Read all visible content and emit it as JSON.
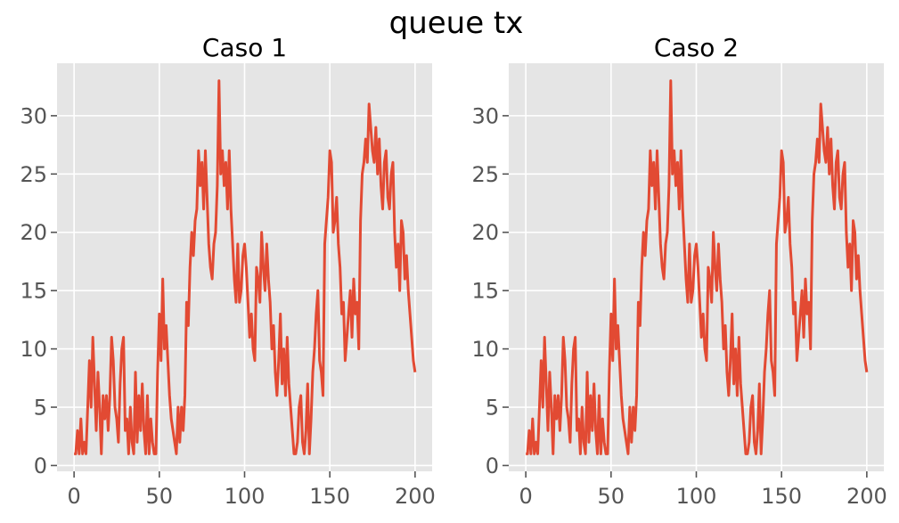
{
  "figure": {
    "title": "queue tx"
  },
  "chart_data": [
    {
      "type": "line",
      "title": "Caso 1",
      "xlabel": "",
      "ylabel": "",
      "xlim": [
        -10,
        210
      ],
      "ylim": [
        -0.5,
        34.5
      ],
      "xticks": [
        0,
        50,
        100,
        150,
        200
      ],
      "yticks": [
        0,
        5,
        10,
        15,
        20,
        25,
        30
      ],
      "grid": true,
      "legend": "none",
      "series": [
        {
          "color": "#E24A33",
          "x": [
            0,
            1,
            2,
            3,
            4,
            5,
            6,
            7,
            8,
            9,
            10,
            11,
            12,
            13,
            14,
            15,
            16,
            17,
            18,
            19,
            20,
            21,
            22,
            23,
            24,
            25,
            26,
            27,
            28,
            29,
            30,
            31,
            32,
            33,
            34,
            35,
            36,
            37,
            38,
            39,
            40,
            41,
            42,
            43,
            44,
            45,
            46,
            47,
            48,
            49,
            50,
            51,
            52,
            53,
            54,
            55,
            56,
            57,
            58,
            59,
            60,
            61,
            62,
            63,
            64,
            65,
            66,
            67,
            68,
            69,
            70,
            71,
            72,
            73,
            74,
            75,
            76,
            77,
            78,
            79,
            80,
            81,
            82,
            83,
            84,
            85,
            86,
            87,
            88,
            89,
            90,
            91,
            92,
            93,
            94,
            95,
            96,
            97,
            98,
            99,
            100,
            101,
            102,
            103,
            104,
            105,
            106,
            107,
            108,
            109,
            110,
            111,
            112,
            113,
            114,
            115,
            116,
            117,
            118,
            119,
            120,
            121,
            122,
            123,
            124,
            125,
            126,
            127,
            128,
            129,
            130,
            131,
            132,
            133,
            134,
            135,
            136,
            137,
            138,
            139,
            140,
            141,
            142,
            143,
            144,
            145,
            146,
            147,
            148,
            149,
            150,
            151,
            152,
            153,
            154,
            155,
            156,
            157,
            158,
            159,
            160,
            161,
            162,
            163,
            164,
            165,
            166,
            167,
            168,
            169,
            170,
            171,
            172,
            173,
            174,
            175,
            176,
            177,
            178,
            179,
            180,
            181,
            182,
            183,
            184,
            185,
            186,
            187,
            188,
            189,
            190,
            191,
            192,
            193,
            194,
            195,
            196,
            197,
            198,
            199,
            200
          ],
          "y": [
            1,
            1,
            3,
            1,
            4,
            1,
            2,
            1,
            5,
            9,
            5,
            11,
            7,
            3,
            8,
            5,
            1,
            6,
            4,
            6,
            3,
            6,
            11,
            9,
            5,
            4,
            2,
            7,
            10,
            11,
            3,
            4,
            1,
            5,
            2,
            1,
            8,
            2,
            6,
            3,
            7,
            3,
            1,
            6,
            1,
            4,
            2,
            1,
            1,
            8,
            13,
            9,
            16,
            10,
            12,
            9,
            6,
            4,
            3,
            2,
            1,
            5,
            2,
            5,
            3,
            6,
            14,
            12,
            17,
            20,
            18,
            21,
            22,
            27,
            24,
            26,
            22,
            27,
            23,
            19,
            17,
            16,
            19,
            20,
            24,
            33,
            25,
            27,
            24,
            26,
            22,
            27,
            22,
            19,
            16,
            14,
            19,
            14,
            15,
            18,
            19,
            17,
            14,
            11,
            13,
            10,
            9,
            17,
            16,
            14,
            20,
            17,
            15,
            19,
            16,
            14,
            10,
            12,
            8,
            6,
            9,
            13,
            7,
            10,
            6,
            11,
            7,
            5,
            3,
            1,
            1,
            2,
            5,
            6,
            2,
            1,
            3,
            7,
            1,
            4,
            8,
            10,
            13,
            15,
            9,
            8,
            6,
            19,
            21,
            23,
            27,
            26,
            20,
            21,
            23,
            19,
            17,
            13,
            14,
            9,
            11,
            13,
            15,
            11,
            16,
            13,
            14,
            10,
            21,
            25,
            26,
            28,
            26,
            31,
            29,
            27,
            26,
            29,
            25,
            28,
            24,
            22,
            26,
            27,
            23,
            22,
            25,
            26,
            20,
            17,
            19,
            15,
            21,
            20,
            16,
            18,
            15,
            13,
            11,
            9,
            8
          ],
          "name": ""
        }
      ]
    },
    {
      "type": "line",
      "title": "Caso 2",
      "xlabel": "",
      "ylabel": "",
      "xlim": [
        -10,
        210
      ],
      "ylim": [
        -0.5,
        34.5
      ],
      "xticks": [
        0,
        50,
        100,
        150,
        200
      ],
      "yticks": [
        0,
        5,
        10,
        15,
        20,
        25,
        30
      ],
      "grid": true,
      "legend": "none",
      "series": [
        {
          "color": "#E24A33",
          "x": [
            0,
            1,
            2,
            3,
            4,
            5,
            6,
            7,
            8,
            9,
            10,
            11,
            12,
            13,
            14,
            15,
            16,
            17,
            18,
            19,
            20,
            21,
            22,
            23,
            24,
            25,
            26,
            27,
            28,
            29,
            30,
            31,
            32,
            33,
            34,
            35,
            36,
            37,
            38,
            39,
            40,
            41,
            42,
            43,
            44,
            45,
            46,
            47,
            48,
            49,
            50,
            51,
            52,
            53,
            54,
            55,
            56,
            57,
            58,
            59,
            60,
            61,
            62,
            63,
            64,
            65,
            66,
            67,
            68,
            69,
            70,
            71,
            72,
            73,
            74,
            75,
            76,
            77,
            78,
            79,
            80,
            81,
            82,
            83,
            84,
            85,
            86,
            87,
            88,
            89,
            90,
            91,
            92,
            93,
            94,
            95,
            96,
            97,
            98,
            99,
            100,
            101,
            102,
            103,
            104,
            105,
            106,
            107,
            108,
            109,
            110,
            111,
            112,
            113,
            114,
            115,
            116,
            117,
            118,
            119,
            120,
            121,
            122,
            123,
            124,
            125,
            126,
            127,
            128,
            129,
            130,
            131,
            132,
            133,
            134,
            135,
            136,
            137,
            138,
            139,
            140,
            141,
            142,
            143,
            144,
            145,
            146,
            147,
            148,
            149,
            150,
            151,
            152,
            153,
            154,
            155,
            156,
            157,
            158,
            159,
            160,
            161,
            162,
            163,
            164,
            165,
            166,
            167,
            168,
            169,
            170,
            171,
            172,
            173,
            174,
            175,
            176,
            177,
            178,
            179,
            180,
            181,
            182,
            183,
            184,
            185,
            186,
            187,
            188,
            189,
            190,
            191,
            192,
            193,
            194,
            195,
            196,
            197,
            198,
            199,
            200
          ],
          "y": [
            1,
            1,
            3,
            1,
            4,
            1,
            2,
            1,
            5,
            9,
            5,
            11,
            7,
            3,
            8,
            5,
            1,
            6,
            4,
            6,
            3,
            6,
            11,
            9,
            5,
            4,
            2,
            7,
            10,
            11,
            3,
            4,
            1,
            5,
            2,
            1,
            8,
            2,
            6,
            3,
            7,
            3,
            1,
            6,
            1,
            4,
            2,
            1,
            1,
            8,
            13,
            9,
            16,
            10,
            12,
            9,
            6,
            4,
            3,
            2,
            1,
            5,
            2,
            5,
            3,
            6,
            14,
            12,
            17,
            20,
            18,
            21,
            22,
            27,
            24,
            26,
            22,
            27,
            23,
            19,
            17,
            16,
            19,
            20,
            24,
            33,
            25,
            27,
            24,
            26,
            22,
            27,
            22,
            19,
            16,
            14,
            19,
            14,
            15,
            18,
            19,
            17,
            14,
            11,
            13,
            10,
            9,
            17,
            16,
            14,
            20,
            17,
            15,
            19,
            16,
            14,
            10,
            12,
            8,
            6,
            9,
            13,
            7,
            10,
            6,
            11,
            7,
            5,
            3,
            1,
            1,
            2,
            5,
            6,
            2,
            1,
            3,
            7,
            1,
            4,
            8,
            10,
            13,
            15,
            9,
            8,
            6,
            19,
            21,
            23,
            27,
            26,
            20,
            21,
            23,
            19,
            17,
            13,
            14,
            9,
            11,
            13,
            15,
            11,
            16,
            13,
            14,
            10,
            21,
            25,
            26,
            28,
            26,
            31,
            29,
            27,
            26,
            29,
            25,
            28,
            24,
            22,
            26,
            27,
            23,
            22,
            25,
            26,
            20,
            17,
            19,
            15,
            21,
            20,
            16,
            18,
            15,
            13,
            11,
            9,
            8
          ],
          "name": ""
        }
      ]
    }
  ]
}
